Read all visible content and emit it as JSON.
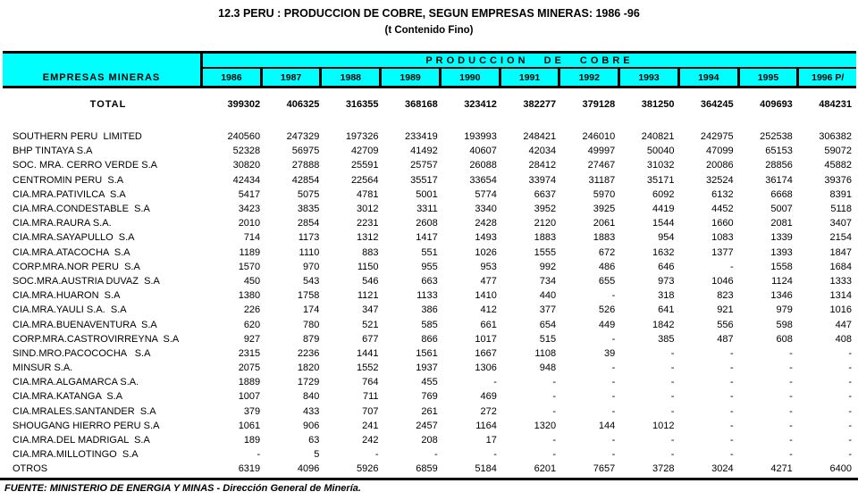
{
  "title": "12.3 PERU : PRODUCCION DE COBRE, SEGUN EMPRESAS MINERAS: 1986 -96",
  "subtitle": "(t Contenido Fino)",
  "footer": "FUENTE: MINISTERIO DE ENERGIA Y MINAS - Dirección General de Minería.",
  "colors": {
    "header_bg": "#00FFFF",
    "border": "#000000"
  },
  "table": {
    "company_header": "EMPRESAS MINERAS",
    "group_header": "PRODUCCION DE COBRE",
    "years": [
      "1986",
      "1987",
      "1988",
      "1989",
      "1990",
      "1991",
      "1992",
      "1993",
      "1994",
      "1995",
      "1996 P/"
    ],
    "total": {
      "label": "TOTAL",
      "values": [
        "399302",
        "406325",
        "316355",
        "368168",
        "323412",
        "382277",
        "379128",
        "381250",
        "364245",
        "409693",
        "484231"
      ]
    },
    "rows": [
      {
        "name": "SOUTHERN PERU  LIMITED",
        "values": [
          "240560",
          "247329",
          "197326",
          "233419",
          "193993",
          "248421",
          "246010",
          "240821",
          "242975",
          "252538",
          "306382"
        ]
      },
      {
        "name": "BHP TINTAYA S.A",
        "values": [
          "52328",
          "56975",
          "42709",
          "41492",
          "40607",
          "42034",
          "49997",
          "50040",
          "47099",
          "65153",
          "59072"
        ]
      },
      {
        "name": "SOC. MRA. CERRO VERDE S.A",
        "values": [
          "30820",
          "27888",
          "25591",
          "25757",
          "26088",
          "28412",
          "27467",
          "31032",
          "20086",
          "28856",
          "45882"
        ]
      },
      {
        "name": "CENTROMIN PERU  S.A",
        "values": [
          "42434",
          "42854",
          "22564",
          "35517",
          "33654",
          "33974",
          "31187",
          "35171",
          "32524",
          "36174",
          "39376"
        ]
      },
      {
        "name": "CIA.MRA.PATIVILCA  S.A",
        "values": [
          "5417",
          "5075",
          "4781",
          "5001",
          "5774",
          "6637",
          "5970",
          "6092",
          "6132",
          "6668",
          "8391"
        ]
      },
      {
        "name": "CIA.MRA.CONDESTABLE  S.A",
        "values": [
          "3423",
          "3835",
          "3012",
          "3311",
          "3340",
          "3952",
          "3925",
          "4419",
          "4452",
          "5007",
          "5118"
        ]
      },
      {
        "name": "CIA.MRA.RAURA S.A.",
        "values": [
          "2010",
          "2854",
          "2231",
          "2608",
          "2428",
          "2120",
          "2061",
          "1544",
          "1660",
          "2081",
          "3407"
        ]
      },
      {
        "name": "CIA.MRA.SAYAPULLO  S.A",
        "values": [
          "714",
          "1173",
          "1312",
          "1417",
          "1493",
          "1883",
          "1883",
          "954",
          "1083",
          "1339",
          "2154"
        ]
      },
      {
        "name": "CIA.MRA.ATACOCHA  S.A",
        "values": [
          "1189",
          "1110",
          "883",
          "551",
          "1026",
          "1555",
          "672",
          "1632",
          "1377",
          "1393",
          "1847"
        ]
      },
      {
        "name": "CORP.MRA.NOR PERU  S.A",
        "values": [
          "1570",
          "970",
          "1150",
          "955",
          "953",
          "992",
          "486",
          "646",
          "-",
          "1558",
          "1684"
        ]
      },
      {
        "name": "SOC.MRA.AUSTRIA DUVAZ  S.A",
        "values": [
          "450",
          "543",
          "546",
          "663",
          "477",
          "734",
          "655",
          "973",
          "1046",
          "1124",
          "1333"
        ]
      },
      {
        "name": "CIA.MRA.HUARON  S.A",
        "values": [
          "1380",
          "1758",
          "1121",
          "1133",
          "1410",
          "440",
          "-",
          "318",
          "823",
          "1346",
          "1314"
        ]
      },
      {
        "name": "CIA.MRA.YAULI S.A.  S.A",
        "values": [
          "226",
          "174",
          "347",
          "386",
          "412",
          "377",
          "526",
          "641",
          "921",
          "979",
          "1016"
        ]
      },
      {
        "name": "CIA.MRA.BUENAVENTURA  S.A",
        "values": [
          "620",
          "780",
          "521",
          "585",
          "661",
          "654",
          "449",
          "1842",
          "556",
          "598",
          "447"
        ]
      },
      {
        "name": "CORP.MRA.CASTROVIRREYNA  S.A",
        "values": [
          "927",
          "879",
          "677",
          "866",
          "1017",
          "515",
          "-",
          "385",
          "487",
          "608",
          "408"
        ]
      },
      {
        "name": "SIND.MRO.PACOCOCHA   S.A",
        "values": [
          "2315",
          "2236",
          "1441",
          "1561",
          "1667",
          "1108",
          "39",
          "-",
          "-",
          "-",
          "-"
        ]
      },
      {
        "name": "MINSUR S.A.",
        "values": [
          "2075",
          "1820",
          "1552",
          "1937",
          "1306",
          "948",
          "-",
          "-",
          "-",
          "-",
          "-"
        ]
      },
      {
        "name": "CIA.MRA.ALGAMARCA S.A.",
        "values": [
          "1889",
          "1729",
          "764",
          "455",
          "-",
          "-",
          "-",
          "-",
          "-",
          "-",
          "-"
        ]
      },
      {
        "name": "CIA.MRA.KATANGA  S.A",
        "values": [
          "1007",
          "840",
          "711",
          "769",
          "469",
          "-",
          "-",
          "-",
          "-",
          "-",
          "-"
        ]
      },
      {
        "name": "CIA.MRALES.SANTANDER  S.A",
        "values": [
          "379",
          "433",
          "707",
          "261",
          "272",
          "-",
          "-",
          "-",
          "-",
          "-",
          "-"
        ]
      },
      {
        "name": "SHOUGANG HIERRO PERU S.A",
        "values": [
          "1061",
          "906",
          "241",
          "2457",
          "1164",
          "1320",
          "144",
          "1012",
          "-",
          "-",
          "-"
        ]
      },
      {
        "name": "CIA.MRA.DEL MADRIGAL  S.A",
        "values": [
          "189",
          "63",
          "242",
          "208",
          "17",
          "-",
          "-",
          "-",
          "-",
          "-",
          "-"
        ]
      },
      {
        "name": "CIA.MRA.MILLOTINGO  S.A",
        "values": [
          "-",
          "5",
          "-",
          "-",
          "-",
          "-",
          "-",
          "-",
          "-",
          "-",
          "-"
        ]
      },
      {
        "name": "OTROS",
        "values": [
          "6319",
          "4096",
          "5926",
          "6859",
          "5184",
          "6201",
          "7657",
          "3728",
          "3024",
          "4271",
          "6400"
        ]
      }
    ]
  }
}
